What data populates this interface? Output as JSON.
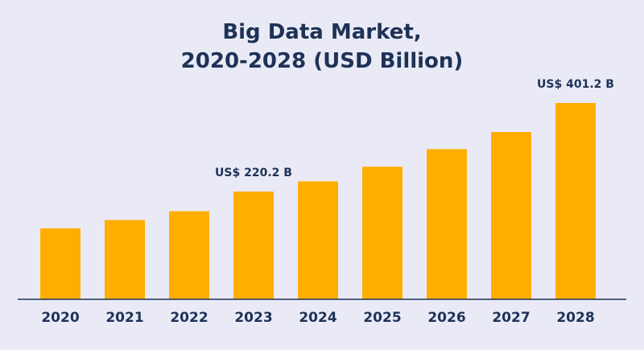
{
  "colors": {
    "background": "#E9EAF6",
    "bar": "#FFAE00",
    "text": "#1E3256",
    "axis": "#1E3256"
  },
  "chart_data": {
    "type": "bar",
    "title_lines": [
      "Big Data Market,",
      "2020-2028 (USD Billion)"
    ],
    "xlabel": "",
    "ylabel": "",
    "categories": [
      "2020",
      "2021",
      "2022",
      "2023",
      "2024",
      "2025",
      "2026",
      "2027",
      "2028"
    ],
    "values": [
      145,
      162,
      180,
      220.2,
      241,
      271,
      307,
      342,
      401.2
    ],
    "data_labels": [
      {
        "category": "2023",
        "text": "US$ 220.2 B"
      },
      {
        "category": "2028",
        "text": "US$ 401.2 B"
      }
    ],
    "ylim": [
      0,
      401.2
    ],
    "grid": false,
    "legend": "none"
  }
}
